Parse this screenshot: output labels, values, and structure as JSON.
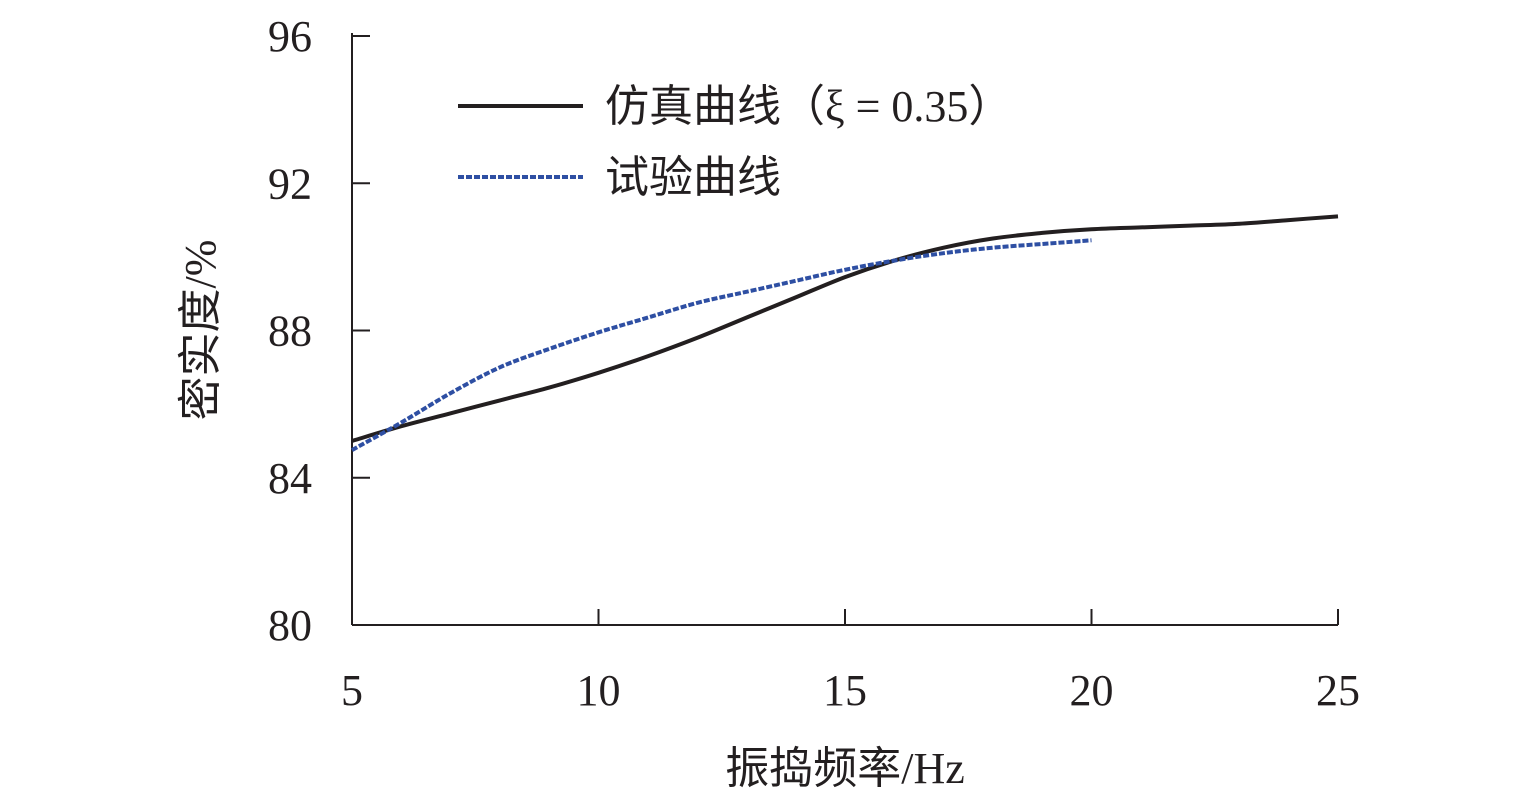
{
  "chart_data": {
    "type": "line",
    "title": "",
    "xlabel": "振捣频率/Hz",
    "ylabel": "密实度/%",
    "xlim": [
      5,
      25
    ],
    "ylim": [
      80,
      96
    ],
    "xticks": [
      5,
      10,
      15,
      20,
      25
    ],
    "yticks": [
      80,
      84,
      88,
      92,
      96
    ],
    "grid": false,
    "legend_position": "top-left",
    "series": [
      {
        "name": "仿真曲线（ξ = 0.35）",
        "color": "#231f20",
        "style": "solid",
        "x": [
          5,
          6,
          7,
          8,
          9,
          10,
          11,
          12,
          13,
          14,
          15,
          16,
          17,
          18,
          19,
          20,
          21,
          22,
          23,
          24,
          25
        ],
        "y": [
          85.0,
          85.4,
          85.75,
          86.1,
          86.45,
          86.85,
          87.3,
          87.8,
          88.35,
          88.9,
          89.45,
          89.9,
          90.25,
          90.5,
          90.65,
          90.75,
          90.8,
          90.85,
          90.9,
          91.0,
          91.1
        ]
      },
      {
        "name": "试验曲线",
        "color": "#2e4fa3",
        "style": "dashed",
        "x": [
          5,
          6,
          7,
          8,
          9,
          10,
          11,
          12,
          13,
          14,
          15,
          16,
          17,
          18,
          19,
          20
        ],
        "y": [
          84.75,
          85.5,
          86.3,
          87.0,
          87.5,
          87.95,
          88.35,
          88.75,
          89.05,
          89.35,
          89.65,
          89.9,
          90.1,
          90.25,
          90.35,
          90.45
        ]
      }
    ]
  }
}
